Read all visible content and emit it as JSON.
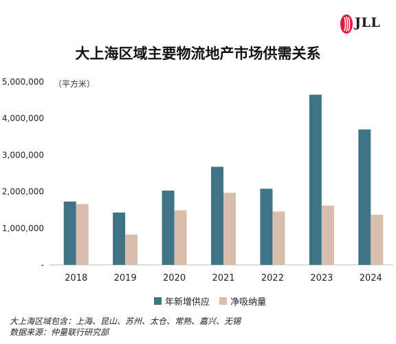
{
  "brand": {
    "name": "JLL"
  },
  "chart_data": {
    "type": "bar",
    "title": "大上海区域主要物流地产市场供需关系",
    "unit_label": "（平方米）",
    "categories": [
      "2018",
      "2019",
      "2020",
      "2021",
      "2022",
      "2023",
      "2024"
    ],
    "series": [
      {
        "name": "年新增供应",
        "color": "#3e7485",
        "values": [
          1730000,
          1430000,
          2030000,
          2680000,
          2080000,
          4650000,
          3700000
        ]
      },
      {
        "name": "净吸纳量",
        "color": "#d8bfad",
        "values": [
          1660000,
          830000,
          1490000,
          1970000,
          1460000,
          1620000,
          1370000
        ]
      }
    ],
    "ylim": [
      0,
      5000000
    ],
    "yticks": [
      "5,000,000",
      "4,000,000",
      "3,000,000",
      "2,000,000",
      "1,000,000",
      "-"
    ],
    "grid": false,
    "legend_position": "bottom"
  },
  "notes": [
    "大上海区域包含：上海、昆山、苏州、太仓、常熟、嘉兴、无锡",
    "数据来源：仲量联行研究部"
  ]
}
